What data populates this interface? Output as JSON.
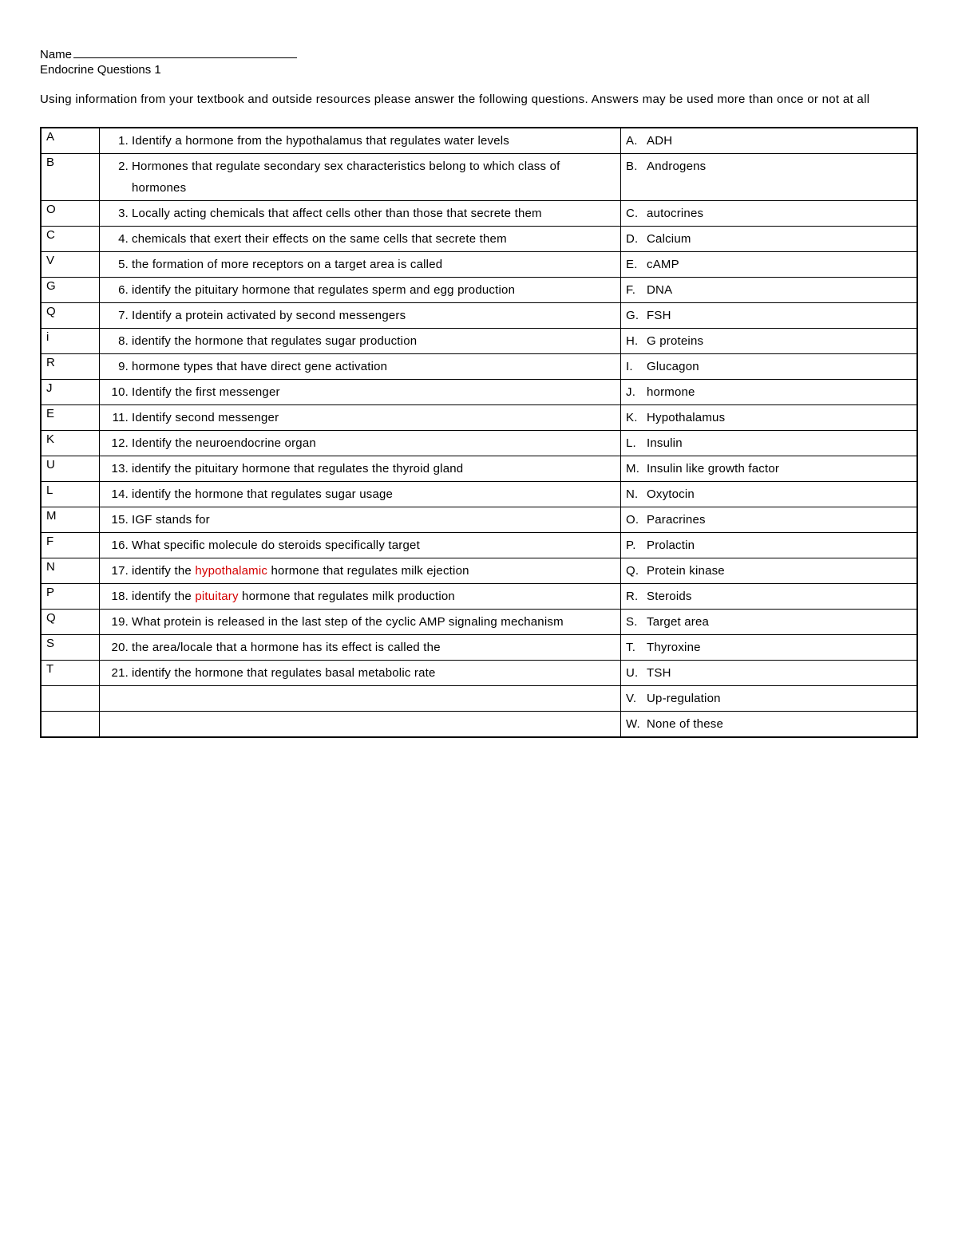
{
  "header": {
    "name_label": "Name",
    "title": "Endocrine Questions  1"
  },
  "instructions": "Using information from your textbook and outside resources please answer the following questions.   Answers may be used more than once or not at all",
  "colors": {
    "highlight": "#d40000",
    "text": "#000000",
    "background": "#ffffff"
  },
  "rows": [
    {
      "answer": "A",
      "qnum": "1.",
      "qtext": "Identify a hormone from the hypothalamus that regulates water levels",
      "opt_letter": "A.",
      "opt_text": "ADH"
    },
    {
      "answer": "B",
      "qnum": "2.",
      "qtext": "Hormones that regulate secondary sex characteristics belong to which class of hormones",
      "opt_letter": "B.",
      "opt_text": "Androgens"
    },
    {
      "answer": "O",
      "qnum": "3.",
      "qtext": "Locally acting chemicals that affect cells other than those that secrete them",
      "opt_letter": "C.",
      "opt_text": "autocrines"
    },
    {
      "answer": "C",
      "qnum": "4.",
      "qtext": "chemicals that exert their effects on the same cells that secrete them",
      "opt_letter": "D.",
      "opt_text": "Calcium"
    },
    {
      "answer": "V",
      "qnum": "5.",
      "qtext": "the formation of more receptors on a target area is called",
      "opt_letter": "E.",
      "opt_text": "cAMP"
    },
    {
      "answer": "G",
      "qnum": "6.",
      "qtext": "identify the pituitary hormone that regulates sperm and egg production",
      "opt_letter": "F.",
      "opt_text": "DNA"
    },
    {
      "answer": "Q",
      "qnum": "7.",
      "qtext": "Identify a protein activated by second messengers",
      "opt_letter": "G.",
      "opt_text": "FSH"
    },
    {
      "answer": "i",
      "qnum": "8.",
      "qtext": "identify the hormone that regulates sugar production",
      "opt_letter": "H.",
      "opt_text": "G proteins"
    },
    {
      "answer": "R",
      "qnum": "9.",
      "qtext": "hormone types that have direct gene activation",
      "opt_letter": "I.",
      "opt_text": "Glucagon"
    },
    {
      "answer": "J",
      "qnum": "10.",
      "qtext": "Identify the first messenger",
      "opt_letter": "J.",
      "opt_text": "hormone"
    },
    {
      "answer": "E",
      "qnum": "11.",
      "qtext": "Identify second messenger",
      "opt_letter": "K.",
      "opt_text": "Hypothalamus"
    },
    {
      "answer": "K",
      "qnum": "12.",
      "qtext": "Identify the neuroendocrine organ",
      "opt_letter": "L.",
      "opt_text": "Insulin"
    },
    {
      "answer": "U",
      "qnum": "13.",
      "qtext": "identify the pituitary hormone that regulates the thyroid gland",
      "opt_letter": "M.",
      "opt_text": "Insulin like growth factor"
    },
    {
      "answer": "L",
      "qnum": "14.",
      "qtext": "identify the hormone that regulates sugar usage",
      "opt_letter": "N.",
      "opt_text": "Oxytocin"
    },
    {
      "answer": "M",
      "qnum": "15.",
      "qtext": "IGF stands for",
      "opt_letter": "O.",
      "opt_text": "Paracrines"
    },
    {
      "answer": "F",
      "qnum": "16.",
      "qtext": "What specific molecule do steroids specifically target",
      "opt_letter": "P.",
      "opt_text": "Prolactin"
    },
    {
      "answer": "N",
      "qnum": "17.",
      "qtext_pre": "identify the ",
      "qtext_hl": "hypothalamic",
      "qtext_post": " hormone that regulates milk ejection",
      "opt_letter": "Q.",
      "opt_text": "Protein kinase"
    },
    {
      "answer": "P",
      "qnum": "18.",
      "qtext_pre": "identify the ",
      "qtext_hl": "pituitary",
      "qtext_post": " hormone that regulates milk production",
      "opt_letter": "R.",
      "opt_text": "Steroids"
    },
    {
      "answer": "Q",
      "qnum": "19.",
      "qtext": "What protein is released in the last step of the cyclic AMP signaling mechanism",
      "opt_letter": "S.",
      "opt_text": "Target area"
    },
    {
      "answer": "S",
      "qnum": "20.",
      "qtext": "the area/locale that a hormone has its effect is called the",
      "opt_letter": "T.",
      "opt_text": "Thyroxine"
    },
    {
      "answer": "T",
      "qnum": "21.",
      "qtext": "identify the hormone that regulates basal metabolic rate",
      "opt_letter": "U.",
      "opt_text": "TSH"
    },
    {
      "answer": "",
      "qnum": "",
      "qtext": "",
      "opt_letter": "V.",
      "opt_text": "Up-regulation"
    },
    {
      "answer": "",
      "qnum": "",
      "qtext": "",
      "opt_letter": "W.",
      "opt_text": "None of these"
    }
  ]
}
